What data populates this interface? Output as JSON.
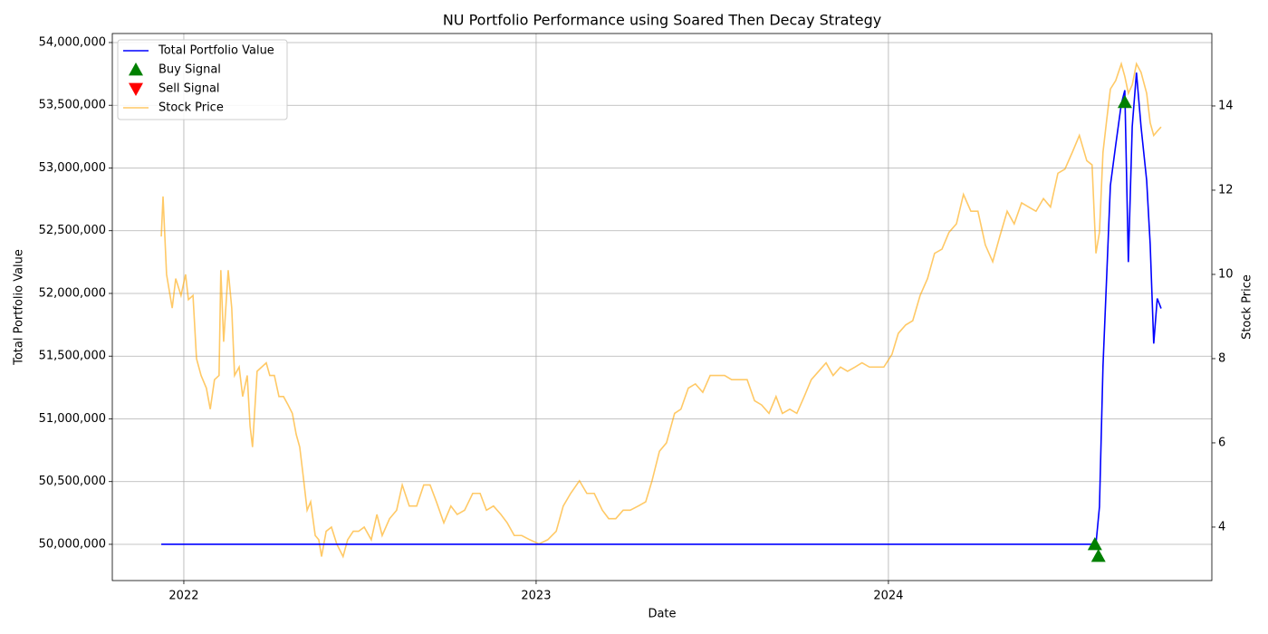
{
  "chart_data": {
    "type": "line",
    "title": "NU Portfolio Performance using Soared Then Decay Strategy",
    "x_label": "Date",
    "y_label": "Total Portfolio Value",
    "y2_label": "Stock Price",
    "xlim": [
      2021.797,
      2024.918
    ],
    "xticks": [
      2022,
      2023,
      2024
    ],
    "ylim": [
      49711000,
      54072000
    ],
    "yticks": [
      {
        "value": 50000000,
        "label": "50,000,000"
      },
      {
        "value": 50500000,
        "label": "50,500,000"
      },
      {
        "value": 51000000,
        "label": "51,000,000"
      },
      {
        "value": 51500000,
        "label": "51,500,000"
      },
      {
        "value": 52000000,
        "label": "52,000,000"
      },
      {
        "value": 52500000,
        "label": "52,500,000"
      },
      {
        "value": 53000000,
        "label": "53,000,000"
      },
      {
        "value": 53500000,
        "label": "53,500,000"
      },
      {
        "value": 54000000,
        "label": "54,000,000"
      }
    ],
    "y2lim": [
      2.73,
      15.72
    ],
    "y2ticks": [
      4,
      6,
      8,
      10,
      12,
      14
    ],
    "grid": true,
    "legend": "upper-left",
    "series": [
      {
        "name": "Total Portfolio Value",
        "type": "line",
        "color": "#0000ff",
        "x": [
          2021.936,
          2024.589,
          2024.599,
          2024.609,
          2024.62,
          2024.63,
          2024.645,
          2024.661,
          2024.671,
          2024.681,
          2024.692,
          2024.704,
          2024.717,
          2024.733,
          2024.743,
          2024.753,
          2024.763,
          2024.774
        ],
        "values": [
          50000000,
          50000000,
          50300000,
          51420000,
          52170000,
          52860000,
          53180000,
          53510000,
          53620000,
          52250000,
          53330000,
          53760000,
          53330000,
          52900000,
          52390000,
          51600000,
          51960000,
          51880000
        ]
      },
      {
        "name": "Buy Signal",
        "type": "scatter",
        "marker": "triangle-up",
        "color": "#008000",
        "x": [
          2024.586,
          2024.596,
          2024.671
        ],
        "values": [
          50000000,
          49906000,
          53524000
        ]
      },
      {
        "name": "Sell Signal",
        "type": "scatter",
        "marker": "triangle-down",
        "color": "#ff0000",
        "x": [],
        "values": []
      },
      {
        "name": "Stock Price",
        "type": "line",
        "axis": "y2",
        "color": "#ffa500",
        "opacity": 0.6,
        "x": [
          2021.936,
          2021.941,
          2021.951,
          2021.967,
          2021.977,
          2021.992,
          2022.005,
          2022.013,
          2022.026,
          2022.036,
          2022.049,
          2022.064,
          2022.075,
          2022.087,
          2022.1,
          2022.105,
          2022.113,
          2022.126,
          2022.136,
          2022.144,
          2022.157,
          2022.167,
          2022.18,
          2022.188,
          2022.195,
          2022.208,
          2022.221,
          2022.234,
          2022.244,
          2022.257,
          2022.27,
          2022.283,
          2022.296,
          2022.308,
          2022.319,
          2022.329,
          2022.339,
          2022.35,
          2022.36,
          2022.373,
          2022.383,
          2022.391,
          2022.404,
          2022.419,
          2022.434,
          2022.452,
          2022.465,
          2022.481,
          2022.496,
          2022.512,
          2022.532,
          2022.548,
          2022.563,
          2022.584,
          2022.604,
          2022.62,
          2022.64,
          2022.661,
          2022.681,
          2022.699,
          2022.717,
          2022.738,
          2022.758,
          2022.776,
          2022.797,
          2022.82,
          2022.841,
          2022.859,
          2022.879,
          2022.9,
          2022.918,
          2022.938,
          2022.959,
          2022.982,
          2023.008,
          2023.033,
          2023.057,
          2023.077,
          2023.098,
          2023.123,
          2023.144,
          2023.165,
          2023.188,
          2023.206,
          2023.226,
          2023.247,
          2023.267,
          2023.29,
          2023.311,
          2023.329,
          2023.35,
          2023.37,
          2023.393,
          2023.411,
          2023.432,
          2023.452,
          2023.473,
          2023.494,
          2023.514,
          2023.535,
          2023.555,
          2023.576,
          2023.599,
          2023.62,
          2023.64,
          2023.661,
          2023.681,
          2023.699,
          2023.72,
          2023.74,
          2023.761,
          2023.781,
          2023.802,
          2023.823,
          2023.843,
          2023.864,
          2023.884,
          2023.905,
          2023.925,
          2023.946,
          2023.967,
          2023.987,
          2024.01,
          2024.028,
          2024.049,
          2024.069,
          2024.09,
          2024.111,
          2024.131,
          2024.152,
          2024.172,
          2024.193,
          2024.213,
          2024.234,
          2024.254,
          2024.275,
          2024.296,
          2024.316,
          2024.337,
          2024.357,
          2024.378,
          2024.398,
          2024.419,
          2024.44,
          2024.46,
          2024.481,
          2024.501,
          2024.522,
          2024.542,
          2024.563,
          2024.578,
          2024.589,
          2024.599,
          2024.609,
          2024.62,
          2024.63,
          2024.645,
          2024.661,
          2024.671,
          2024.681,
          2024.692,
          2024.704,
          2024.717,
          2024.733,
          2024.743,
          2024.753,
          2024.763,
          2024.774
        ],
        "values": [
          10.9,
          11.85,
          10.0,
          9.2,
          9.9,
          9.5,
          10.0,
          9.4,
          9.5,
          8.0,
          7.6,
          7.3,
          6.8,
          7.5,
          7.6,
          10.1,
          8.4,
          10.1,
          9.2,
          7.6,
          7.8,
          7.1,
          7.6,
          6.4,
          5.9,
          7.7,
          7.8,
          7.9,
          7.6,
          7.6,
          7.1,
          7.1,
          6.9,
          6.7,
          6.2,
          5.9,
          5.2,
          4.4,
          4.6,
          3.8,
          3.7,
          3.3,
          3.9,
          4.0,
          3.6,
          3.3,
          3.7,
          3.9,
          3.9,
          4.0,
          3.7,
          4.3,
          3.8,
          4.2,
          4.4,
          5.0,
          4.5,
          4.5,
          5.0,
          5.0,
          4.6,
          4.1,
          4.5,
          4.3,
          4.4,
          4.8,
          4.8,
          4.4,
          4.5,
          4.3,
          4.1,
          3.8,
          3.8,
          3.7,
          3.6,
          3.7,
          3.9,
          4.5,
          4.8,
          5.1,
          4.8,
          4.8,
          4.4,
          4.2,
          4.2,
          4.4,
          4.4,
          4.5,
          4.6,
          5.1,
          5.8,
          6.0,
          6.7,
          6.8,
          7.3,
          7.4,
          7.2,
          7.6,
          7.6,
          7.6,
          7.5,
          7.5,
          7.5,
          7.0,
          6.9,
          6.7,
          7.1,
          6.7,
          6.8,
          6.7,
          7.1,
          7.5,
          7.7,
          7.9,
          7.6,
          7.8,
          7.7,
          7.8,
          7.9,
          7.8,
          7.8,
          7.8,
          8.1,
          8.6,
          8.8,
          8.9,
          9.5,
          9.9,
          10.5,
          10.6,
          11.0,
          11.2,
          11.9,
          11.5,
          11.5,
          10.7,
          10.3,
          10.9,
          11.5,
          11.2,
          11.7,
          11.6,
          11.5,
          11.8,
          11.6,
          12.4,
          12.5,
          12.9,
          13.3,
          12.7,
          12.6,
          10.5,
          11.0,
          12.9,
          13.7,
          14.4,
          14.6,
          15.0,
          14.7,
          14.3,
          14.5,
          15.0,
          14.8,
          14.3,
          13.6,
          13.3,
          13.4,
          13.5
        ]
      }
    ]
  }
}
